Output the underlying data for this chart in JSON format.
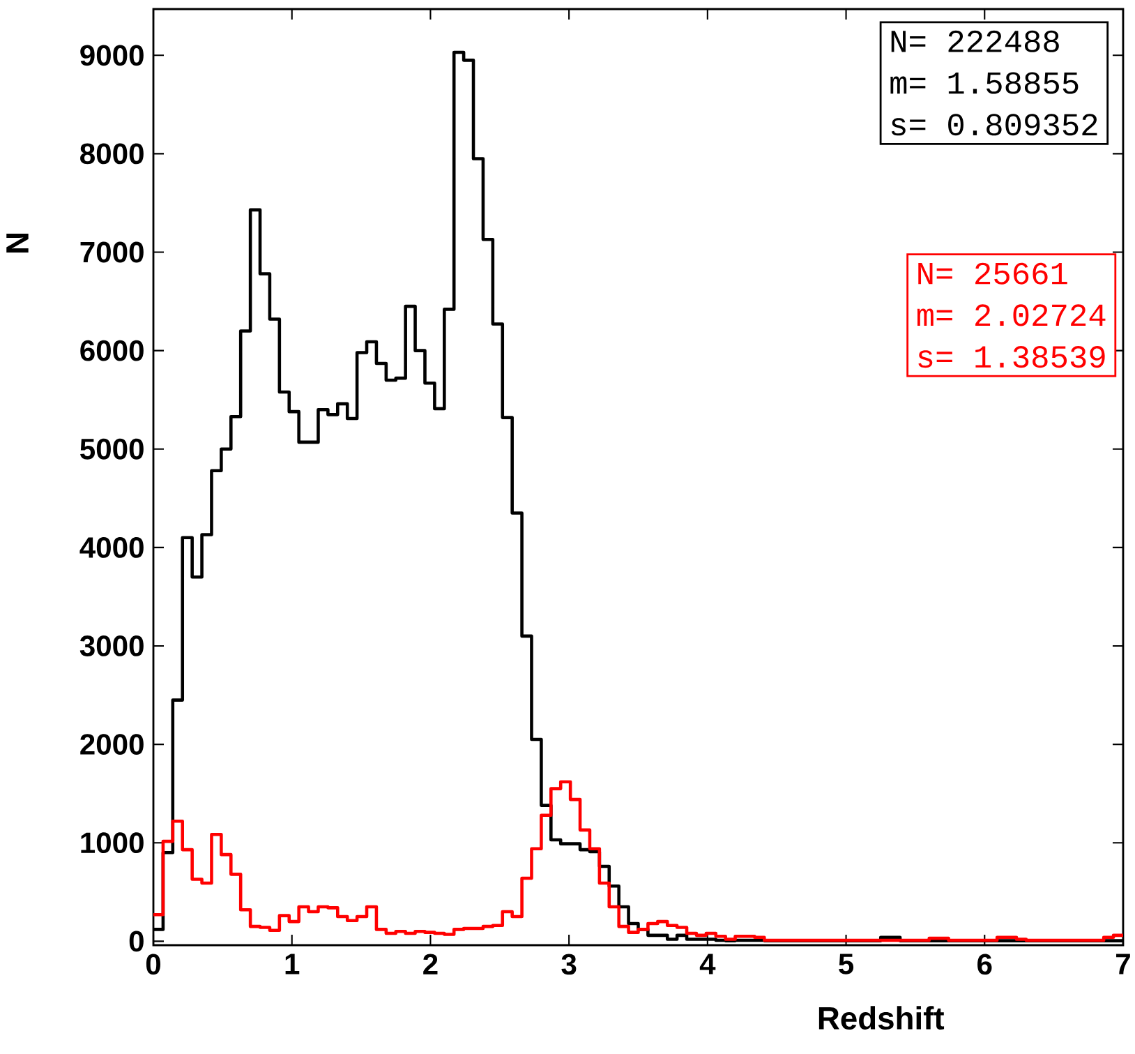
{
  "chart_data": {
    "type": "histogram",
    "xlabel": "Redshift",
    "ylabel": "N",
    "bins": [
      0,
      0.07,
      0.14,
      0.21,
      0.28,
      0.35,
      0.42,
      0.49,
      0.56,
      0.63,
      0.7,
      0.77,
      0.84,
      0.91,
      0.98,
      1.05,
      1.12,
      1.19,
      1.26,
      1.33,
      1.4,
      1.47,
      1.54,
      1.61,
      1.68,
      1.75,
      1.82,
      1.89,
      1.96,
      2.03,
      2.1,
      2.17,
      2.24,
      2.31,
      2.38,
      2.45,
      2.52,
      2.59,
      2.66,
      2.73,
      2.8,
      2.87,
      2.94,
      3.01,
      3.08,
      3.15,
      3.22,
      3.29,
      3.36,
      3.43,
      3.5,
      3.57,
      3.64,
      3.71,
      3.78,
      3.85,
      3.92,
      3.99,
      4.06,
      4.13,
      4.2,
      4.27,
      4.34,
      4.41,
      4.48,
      4.55,
      4.62,
      4.69,
      4.76,
      4.83,
      4.9,
      4.97,
      5.04,
      5.11,
      5.18,
      5.25,
      5.32,
      5.39,
      5.46,
      5.53,
      5.6,
      5.67,
      5.74,
      5.81,
      5.88,
      5.95,
      6.02,
      6.09,
      6.16,
      6.23,
      6.3,
      6.37,
      6.44,
      6.51,
      6.58,
      6.65,
      6.72,
      6.79,
      6.86,
      6.93,
      7
    ],
    "series": [
      {
        "color": "#000000",
        "values": [
          120,
          900,
          2450,
          4100,
          3700,
          4130,
          4780,
          5000,
          5330,
          6200,
          7430,
          6780,
          6320,
          5580,
          5380,
          5070,
          5070,
          5400,
          5350,
          5460,
          5310,
          5980,
          6090,
          5870,
          5700,
          5720,
          6450,
          6000,
          5670,
          5410,
          6420,
          9030,
          8950,
          7950,
          7130,
          6270,
          5320,
          4350,
          3100,
          2050,
          1380,
          1030,
          990,
          990,
          930,
          910,
          760,
          560,
          350,
          180,
          120,
          60,
          60,
          20,
          60,
          20,
          20,
          20,
          10,
          5,
          10,
          10,
          10,
          5,
          5,
          5,
          5,
          5,
          5,
          5,
          5,
          5,
          5,
          5,
          5,
          40,
          40,
          5,
          5,
          5,
          5,
          5,
          5,
          5,
          5,
          5,
          5,
          5,
          5,
          5,
          5,
          5,
          5,
          5,
          5,
          5,
          5,
          5,
          5,
          5
        ]
      },
      {
        "color": "#ff0000",
        "values": [
          270,
          1015,
          1220,
          930,
          630,
          590,
          1085,
          880,
          680,
          320,
          150,
          140,
          110,
          260,
          200,
          350,
          300,
          350,
          340,
          250,
          210,
          250,
          350,
          120,
          80,
          100,
          80,
          100,
          90,
          80,
          70,
          120,
          130,
          130,
          150,
          160,
          300,
          250,
          640,
          940,
          1280,
          1550,
          1620,
          1440,
          1130,
          940,
          590,
          350,
          150,
          90,
          120,
          180,
          200,
          160,
          140,
          80,
          60,
          80,
          50,
          20,
          50,
          50,
          40,
          10,
          10,
          10,
          10,
          10,
          10,
          10,
          10,
          10,
          10,
          10,
          10,
          10,
          10,
          10,
          10,
          10,
          30,
          30,
          10,
          10,
          10,
          10,
          10,
          40,
          40,
          20,
          10,
          10,
          10,
          10,
          10,
          10,
          10,
          10,
          40,
          60
        ]
      }
    ],
    "xlim": [
      0,
      7
    ],
    "ylim": [
      -40,
      9470
    ],
    "xticks": [
      0,
      1,
      2,
      3,
      4,
      5,
      6,
      7
    ],
    "yticks": [
      0,
      1000,
      2000,
      3000,
      4000,
      5000,
      6000,
      7000,
      8000,
      9000
    ],
    "grid": false,
    "annotations": [
      "N= 222488",
      "m= 1.58855",
      "s= 0.809352",
      "N= 25661",
      "m= 2.02724",
      "s= 1.38539"
    ]
  }
}
